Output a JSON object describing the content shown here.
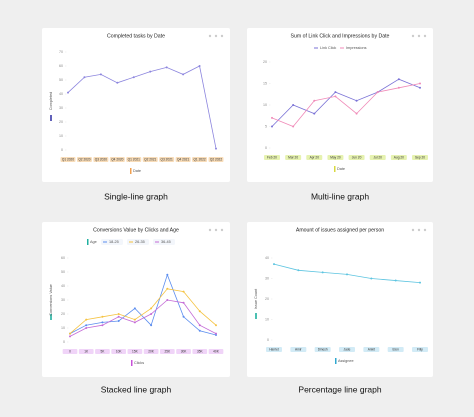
{
  "chart_data": [
    {
      "type": "line",
      "title": "Completed tasks by Date",
      "x_label": "Date",
      "y_label": "Completed",
      "categories": [
        "Q1 2020",
        "Q2 2020",
        "Q3 2020",
        "Q4 2020",
        "Q1 2021",
        "Q2 2021",
        "Q3 2021",
        "Q4 2021",
        "Q1 2022",
        "Q2 2022"
      ],
      "values": [
        41,
        52,
        54,
        48,
        52,
        56,
        59,
        54,
        60,
        1
      ],
      "color": "#8c85de",
      "ylim": [
        0,
        70
      ],
      "yticks": [
        0,
        10,
        20,
        30,
        40,
        50,
        60,
        70
      ],
      "grid": false
    },
    {
      "type": "line",
      "title": "Sum of Link Click and Impressions by Date",
      "x_label": "Date",
      "categories": [
        "Feb 20",
        "Mar 20",
        "Apr 20",
        "May 20",
        "Jun 20",
        "Jul 20",
        "Aug 20",
        "Sep 20"
      ],
      "series": [
        {
          "name": "Link Click",
          "color": "#7a72d6",
          "values": [
            5,
            10,
            8,
            13,
            11,
            13,
            16,
            14
          ]
        },
        {
          "name": "Impressions",
          "color": "#f08ab8",
          "values": [
            7,
            5,
            11,
            12,
            8,
            13,
            14,
            15
          ]
        }
      ],
      "ylim": [
        0,
        20
      ],
      "yticks": [
        0,
        5,
        10,
        15,
        20
      ],
      "grid": false
    },
    {
      "type": "line",
      "title": "Conversions Value by Clicks and Age",
      "x_label": "Clicks",
      "y_label": "Conversions Value",
      "legend_title": "Age",
      "categories": [
        "0",
        "1K",
        "5K",
        "10K",
        "15K",
        "20K",
        "25K",
        "30K",
        "35K",
        "40K"
      ],
      "series": [
        {
          "name": "18-25",
          "color": "#5b8def",
          "values": [
            6,
            12,
            14,
            15,
            24,
            12,
            48,
            18,
            8,
            5
          ]
        },
        {
          "name": "26-35",
          "color": "#f5c342",
          "values": [
            6,
            16,
            18,
            20,
            16,
            24,
            38,
            36,
            22,
            12
          ]
        },
        {
          "name": "36-45",
          "color": "#c46bd6",
          "values": [
            4,
            10,
            12,
            18,
            14,
            20,
            30,
            28,
            12,
            6
          ]
        }
      ],
      "ylim": [
        0,
        60
      ],
      "yticks": [
        0,
        10,
        20,
        30,
        40,
        50,
        60
      ],
      "grid": false
    },
    {
      "type": "line",
      "title": "Amount of issues assigned per person",
      "x_label": "Assignee",
      "y_label": "Issue Count",
      "categories": [
        "Harriet",
        "Amir",
        "Dinesh",
        "Jade",
        "Ankit",
        "Elon",
        "Filip"
      ],
      "values": [
        37,
        34,
        33,
        32,
        30,
        29,
        28
      ],
      "color": "#5cc4e0",
      "ylim": [
        0,
        40
      ],
      "yticks": [
        0,
        10,
        20,
        30,
        40
      ],
      "grid": false
    }
  ],
  "captions": [
    "Single-line graph",
    "Multi-line graph",
    "Stacked line graph",
    "Percentage line graph"
  ]
}
